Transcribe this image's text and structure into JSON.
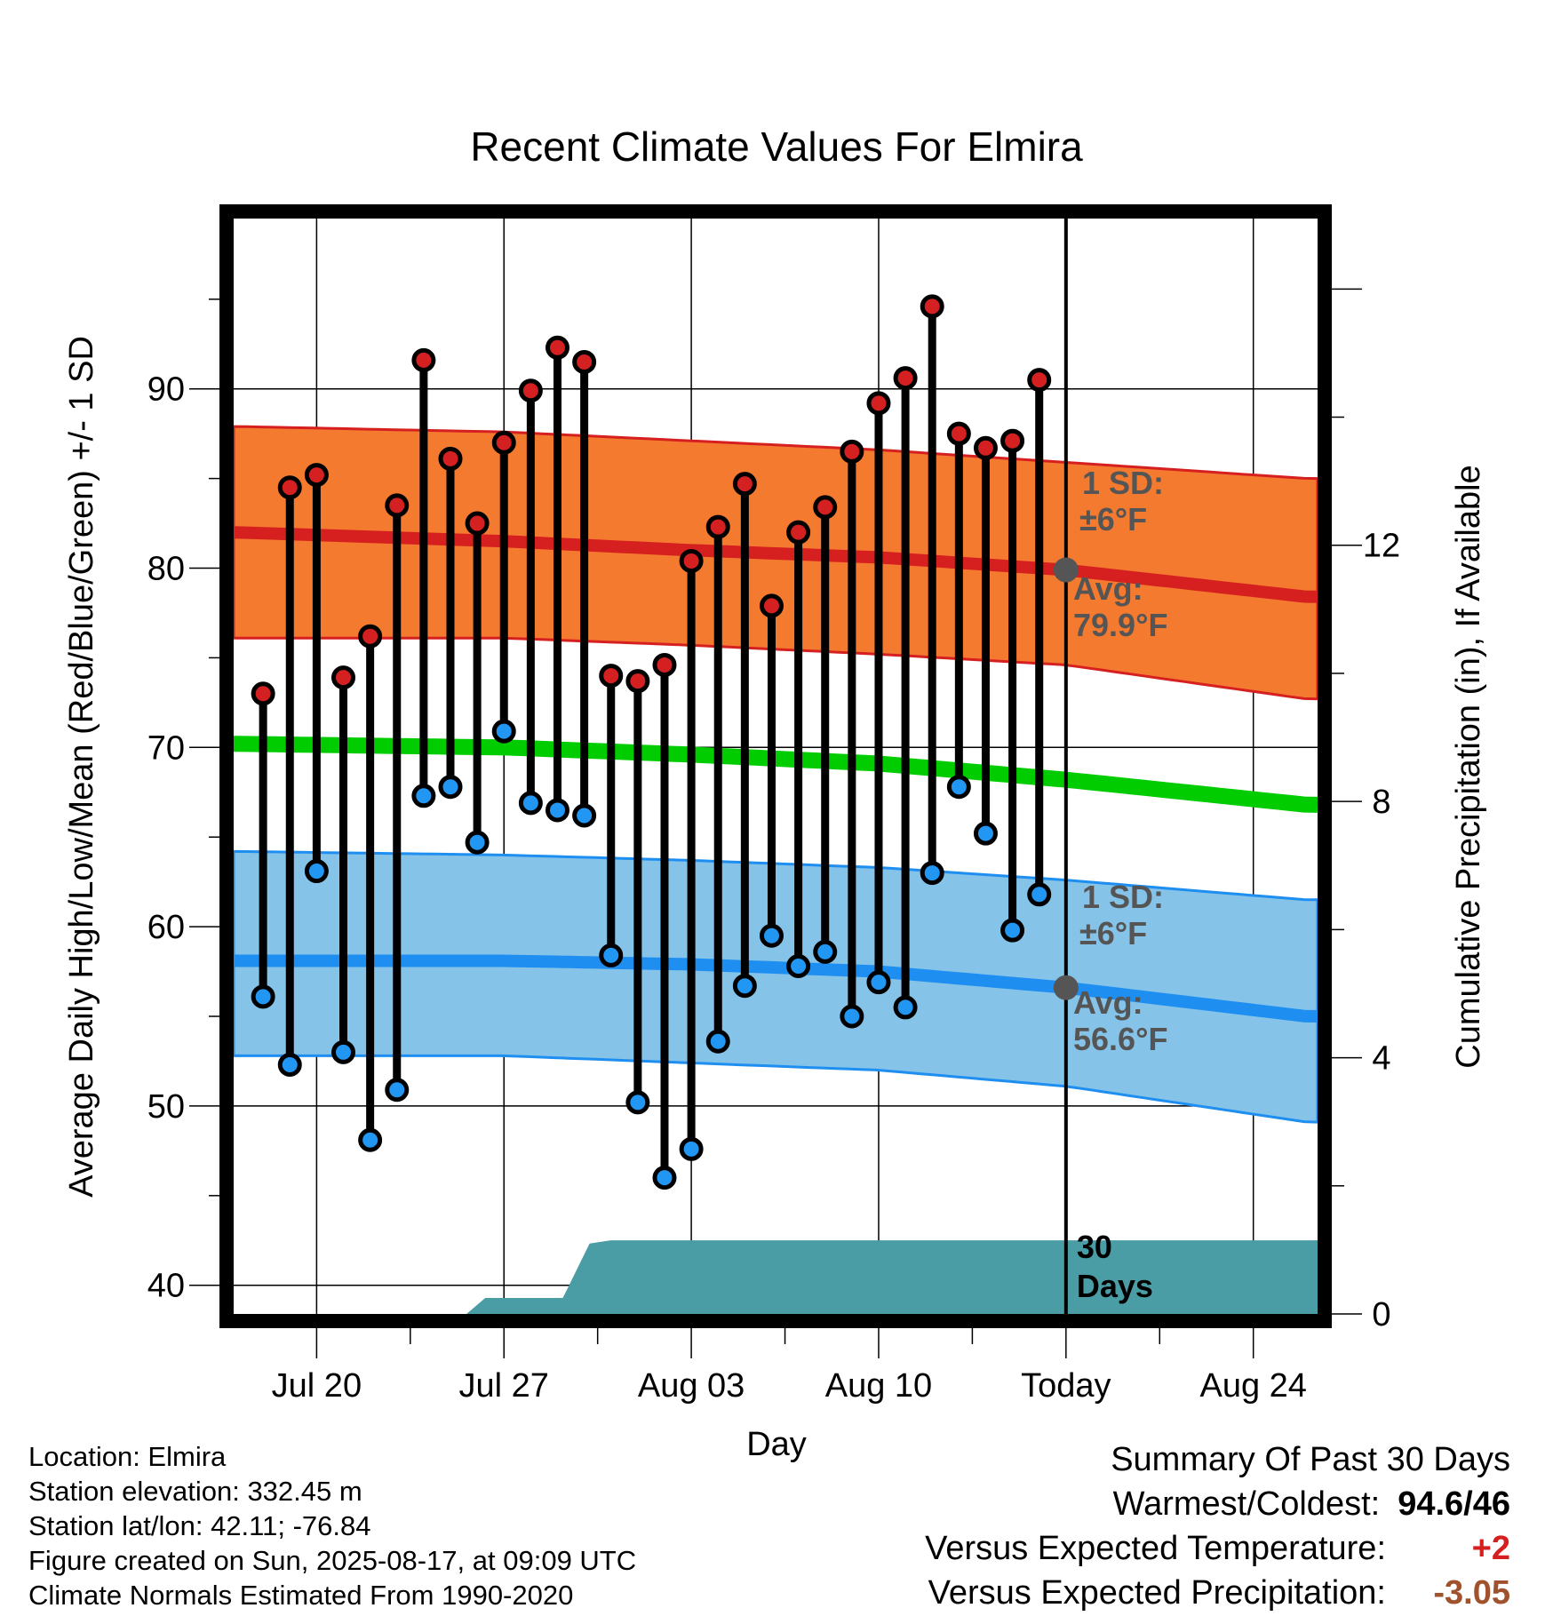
{
  "chart_data": {
    "type": "line",
    "title": "Recent Climate Values For Elmira",
    "xlabel": "Day",
    "ylabel": "Average Daily High/Low/Mean (Red/Blue/Green) +/- 1 SD",
    "y2label": "Cumulative Precipitation (in), If Available",
    "ylim": [
      38.4,
      99.5
    ],
    "y2lim": [
      0,
      17.1
    ],
    "yticks": [
      40,
      50,
      60,
      70,
      80,
      90
    ],
    "y2ticks": [
      0,
      4,
      8,
      12
    ],
    "xlim": [
      -2.1,
      38.4
    ],
    "xticks": [
      {
        "pos": 1,
        "label": "Jul 20"
      },
      {
        "pos": 8,
        "label": "Jul 27"
      },
      {
        "pos": 15,
        "label": "Aug 03"
      },
      {
        "pos": 22,
        "label": "Aug 10"
      },
      {
        "pos": 29,
        "label": "Today"
      },
      {
        "pos": 36,
        "label": "Aug 24"
      }
    ],
    "today_index": 29,
    "today_label": "30\nDays",
    "grid": true,
    "colors": {
      "high_band": "#f47a30",
      "high_line": "#d62020",
      "low_band": "#85c3e9",
      "low_line": "#1e8ff0",
      "mean_line": "#00cc00",
      "precip": "#4a9ca5",
      "high_dot": "#d42020",
      "low_dot": "#2196f3",
      "annotation": "#555555",
      "temp_value": "#d62020",
      "precip_value": "#a0522d"
    },
    "series": [
      {
        "name": "High",
        "x": [
          -1,
          0,
          1,
          2,
          3,
          4,
          5,
          6,
          7,
          8,
          9,
          10,
          11,
          12,
          13,
          14,
          15,
          16,
          17,
          18,
          19,
          20,
          21,
          22,
          23,
          24,
          25,
          26,
          27,
          28
        ],
        "values": [
          73,
          84.5,
          85.2,
          73.9,
          76.2,
          83.5,
          91.6,
          86.1,
          82.5,
          87,
          89.9,
          92.3,
          91.5,
          74,
          73.7,
          74.6,
          80.4,
          82.3,
          84.7,
          77.9,
          82,
          83.4,
          86.5,
          89.2,
          90.6,
          94.6,
          87.5,
          86.7,
          87.1,
          90.5
        ]
      },
      {
        "name": "Low",
        "x": [
          -1,
          0,
          1,
          2,
          3,
          4,
          5,
          6,
          7,
          8,
          9,
          10,
          11,
          12,
          13,
          14,
          15,
          16,
          17,
          18,
          19,
          20,
          21,
          22,
          23,
          24,
          25,
          26,
          27,
          28
        ],
        "values": [
          56.1,
          52.3,
          63.1,
          53,
          48.1,
          50.9,
          67.3,
          67.8,
          64.7,
          70.9,
          66.9,
          66.5,
          66.2,
          58.4,
          50.2,
          46,
          47.6,
          53.6,
          56.7,
          59.5,
          57.8,
          58.6,
          55,
          56.9,
          55.5,
          63,
          67.8,
          65.2,
          59.8,
          61.8
        ]
      }
    ],
    "normals": {
      "x": [
        -2,
        8,
        15,
        22,
        29,
        38
      ],
      "high_avg": [
        82,
        81.5,
        81,
        80.6,
        79.9,
        78.4
      ],
      "high_upper": [
        87.9,
        87.6,
        87.1,
        86.6,
        85.9,
        85
      ],
      "high_lower": [
        76.1,
        76.1,
        75.7,
        75.2,
        74.6,
        72.7
      ],
      "mean_avg": [
        70.2,
        70,
        69.6,
        69.1,
        68.2,
        66.8
      ],
      "low_avg": [
        58.1,
        58.1,
        57.9,
        57.5,
        56.6,
        55
      ],
      "low_upper": [
        64.2,
        64,
        63.7,
        63.3,
        62.6,
        61.5
      ],
      "low_lower": [
        52.8,
        52.8,
        52.4,
        52,
        51.1,
        49.1
      ]
    },
    "precip": {
      "x": [
        -2,
        6.6,
        7.3,
        10.2,
        11.2,
        12,
        29,
        38.4
      ],
      "values": [
        0,
        0,
        0.25,
        0.25,
        1.1,
        1.15,
        1.15,
        1.15
      ]
    },
    "annotations": {
      "high_sd": "1 SD:",
      "high_sd_value": "±6°F",
      "high_avg_label": "Avg:",
      "high_avg_value": "79.9°F",
      "low_sd": "1 SD:",
      "low_sd_value": "±6°F",
      "low_avg_label": "Avg:",
      "low_avg_value": "56.6°F"
    }
  },
  "info": {
    "location": "Location: Elmira",
    "elevation": "Station elevation: 332.45 m",
    "latlon": "Station lat/lon: 42.11; -76.84",
    "created": "Figure created on Sun, 2025-08-17, at 09:09 UTC",
    "normals": "Climate Normals Estimated From 1990-2020"
  },
  "summary": {
    "title": "Summary Of Past 30 Days",
    "warmest_label": "Warmest/Coldest:",
    "warmest_value": "94.6/46",
    "temp_label": "Versus Expected Temperature:",
    "temp_value": "+2",
    "precip_label": "Versus Expected Precipitation:",
    "precip_value": "-3.05"
  }
}
